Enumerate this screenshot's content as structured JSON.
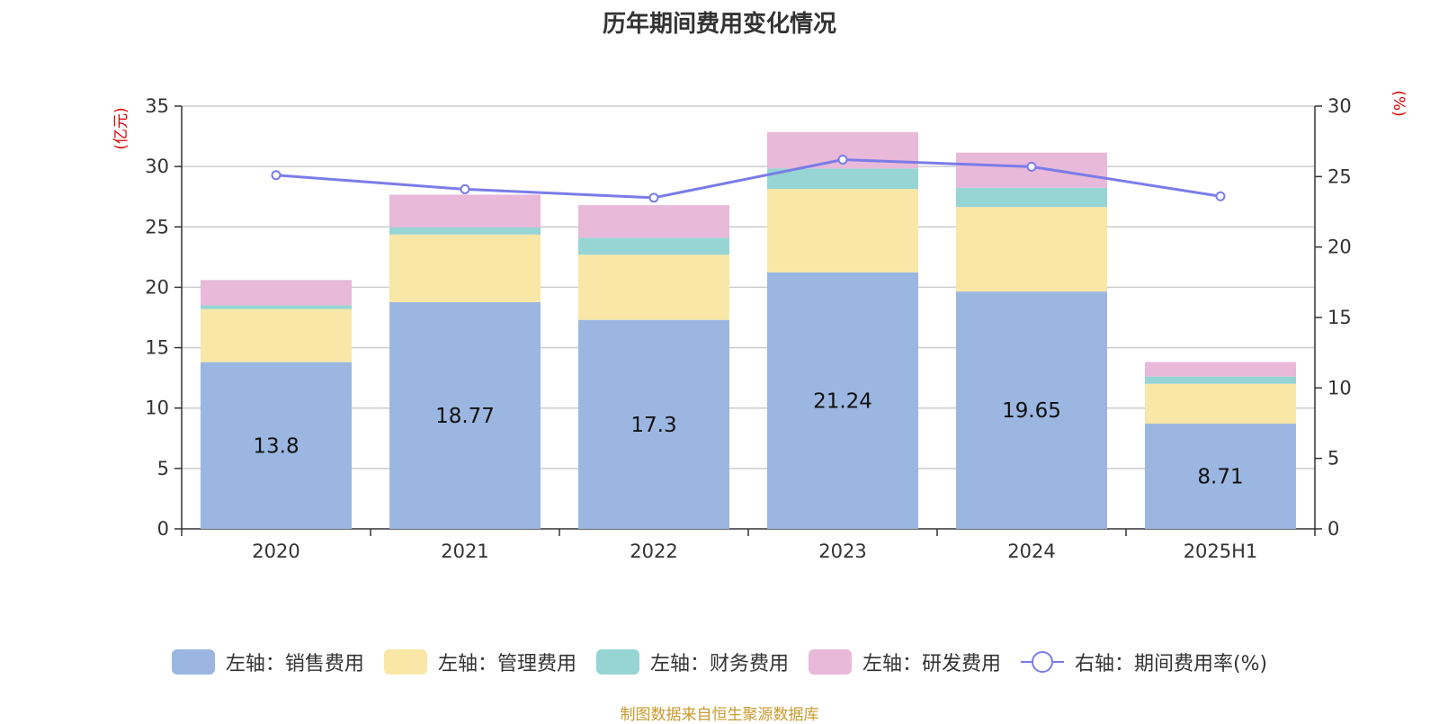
{
  "title": "历年期间费用变化情况",
  "source": "制图数据来自恒生聚源数据库",
  "chart_data": {
    "type": "bar",
    "stacked": true,
    "categories": [
      "2020",
      "2021",
      "2022",
      "2023",
      "2024",
      "2025H1"
    ],
    "left_axis": {
      "unit_label": "(亿元)",
      "ylim": [
        0,
        35
      ],
      "ticks": [
        "0",
        "5",
        "10",
        "15",
        "20",
        "25",
        "30",
        "35"
      ]
    },
    "right_axis": {
      "unit_label": "(%)",
      "ylim": [
        0,
        30
      ],
      "ticks": [
        "0",
        "5",
        "10",
        "15",
        "20",
        "25",
        "30"
      ]
    },
    "series": [
      {
        "name": "左轴：销售费用",
        "axis": "left",
        "type": "bar",
        "color": "#9bb7e1",
        "values": [
          13.8,
          18.77,
          17.3,
          21.24,
          19.65,
          8.71
        ],
        "labels": [
          "13.8",
          "18.77",
          "17.3",
          "21.24",
          "19.65",
          "8.71"
        ]
      },
      {
        "name": "左轴：管理费用",
        "axis": "left",
        "type": "bar",
        "color": "#f8e7a7",
        "values": [
          4.4,
          5.6,
          5.4,
          6.9,
          7.0,
          3.3
        ]
      },
      {
        "name": "左轴：财务费用",
        "axis": "left",
        "type": "bar",
        "color": "#96d5d4",
        "values": [
          0.3,
          0.6,
          1.4,
          1.7,
          1.6,
          0.6
        ]
      },
      {
        "name": "左轴：研发费用",
        "axis": "left",
        "type": "bar",
        "color": "#e8b9d9",
        "values": [
          2.1,
          2.7,
          2.7,
          3.0,
          2.9,
          1.2
        ]
      },
      {
        "name": "右轴：期间费用率(%)",
        "axis": "right",
        "type": "line",
        "color": "#7a7ce8",
        "values": [
          25.1,
          24.1,
          23.5,
          26.2,
          25.7,
          23.6
        ]
      }
    ],
    "grid": true,
    "legend_position": "bottom"
  }
}
